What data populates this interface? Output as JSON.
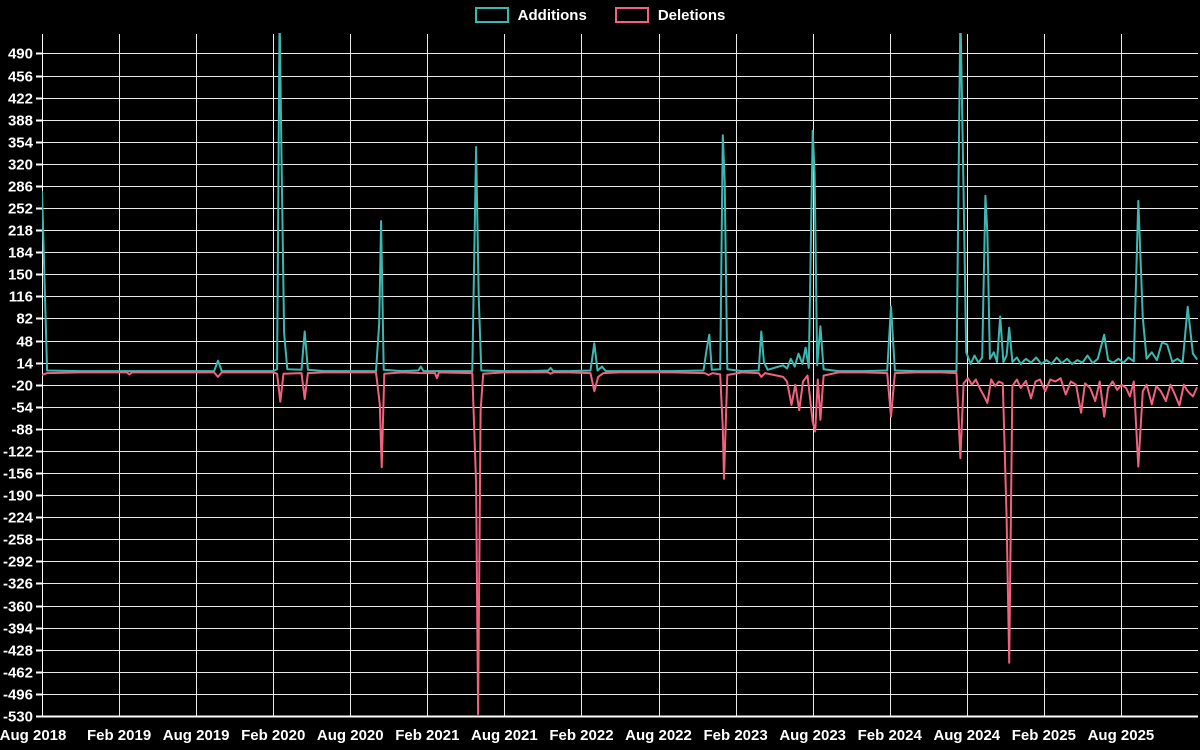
{
  "page": {
    "background": "#000000"
  },
  "legend": {
    "items": [
      {
        "label": "Additions",
        "color": "#3cb8b0"
      },
      {
        "label": "Deletions",
        "color": "#f2617f"
      }
    ]
  },
  "chart_data": {
    "type": "line",
    "title": "",
    "xlabel": "",
    "ylabel": "",
    "grid": true,
    "legend_position": "top-center",
    "background": "#000000",
    "grid_color": "#e8e8e8",
    "axis_color": "#ffffff",
    "x_unit": "months since Aug 2018",
    "x_range": [
      0,
      90
    ],
    "ylim": [
      -530,
      520
    ],
    "y_ticks": [
      490,
      456,
      422,
      388,
      354,
      320,
      286,
      252,
      218,
      184,
      150,
      116,
      82,
      48,
      14,
      -20,
      -54,
      -88,
      -122,
      -156,
      -190,
      -224,
      -258,
      -292,
      -326,
      -360,
      -394,
      -428,
      -462,
      -496,
      -530
    ],
    "x_ticks": [
      {
        "label": "Aug 2018",
        "t": 0
      },
      {
        "label": "Feb 2019",
        "t": 6
      },
      {
        "label": "Aug 2019",
        "t": 12
      },
      {
        "label": "Feb 2020",
        "t": 18
      },
      {
        "label": "Aug 2020",
        "t": 24
      },
      {
        "label": "Feb 2021",
        "t": 30
      },
      {
        "label": "Aug 2021",
        "t": 36
      },
      {
        "label": "Feb 2022",
        "t": 42
      },
      {
        "label": "Aug 2022",
        "t": 48
      },
      {
        "label": "Feb 2023",
        "t": 54
      },
      {
        "label": "Aug 2023",
        "t": 60
      },
      {
        "label": "Feb 2024",
        "t": 66
      },
      {
        "label": "Aug 2024",
        "t": 72
      },
      {
        "label": "Feb 2025",
        "t": 78
      },
      {
        "label": "Aug 2025",
        "t": 84
      }
    ],
    "series": [
      {
        "name": "Additions",
        "color": "#3cb8b0",
        "points": [
          [
            0,
            277
          ],
          [
            0.4,
            2
          ],
          [
            3,
            1
          ],
          [
            6,
            1
          ],
          [
            9,
            1
          ],
          [
            12,
            1
          ],
          [
            13.4,
            1
          ],
          [
            13.7,
            17
          ],
          [
            14,
            1
          ],
          [
            16,
            1
          ],
          [
            18,
            1
          ],
          [
            18.3,
            4
          ],
          [
            18.5,
            555
          ],
          [
            18.65,
            330
          ],
          [
            18.85,
            60
          ],
          [
            19.1,
            4
          ],
          [
            20.2,
            3
          ],
          [
            20.45,
            62
          ],
          [
            20.7,
            3
          ],
          [
            22,
            1
          ],
          [
            24,
            1
          ],
          [
            26,
            1
          ],
          [
            26.25,
            74
          ],
          [
            26.4,
            232
          ],
          [
            26.6,
            3
          ],
          [
            28,
            1
          ],
          [
            29.3,
            2
          ],
          [
            29.5,
            8
          ],
          [
            29.7,
            1
          ],
          [
            31,
            1
          ],
          [
            33.5,
            1
          ],
          [
            33.8,
            346
          ],
          [
            34,
            116
          ],
          [
            34.2,
            2
          ],
          [
            36,
            1
          ],
          [
            38,
            1
          ],
          [
            39.4,
            2
          ],
          [
            39.6,
            6
          ],
          [
            39.8,
            1
          ],
          [
            41,
            1
          ],
          [
            42.7,
            2
          ],
          [
            43,
            44
          ],
          [
            43.25,
            2
          ],
          [
            43.6,
            8
          ],
          [
            43.9,
            1
          ],
          [
            45,
            1
          ],
          [
            47,
            1
          ],
          [
            49,
            1
          ],
          [
            51.5,
            2
          ],
          [
            51.75,
            35
          ],
          [
            51.95,
            57
          ],
          [
            52.15,
            3
          ],
          [
            52.8,
            4
          ],
          [
            53,
            364
          ],
          [
            53.15,
            292
          ],
          [
            53.35,
            4
          ],
          [
            54.5,
            1
          ],
          [
            55.8,
            2
          ],
          [
            56,
            62
          ],
          [
            56.2,
            15
          ],
          [
            56.5,
            3
          ],
          [
            57.7,
            10
          ],
          [
            58,
            5
          ],
          [
            58.3,
            20
          ],
          [
            58.6,
            8
          ],
          [
            58.9,
            28
          ],
          [
            59.2,
            12
          ],
          [
            59.45,
            37
          ],
          [
            59.7,
            6
          ],
          [
            60,
            371
          ],
          [
            60.15,
            305
          ],
          [
            60.35,
            10
          ],
          [
            60.6,
            70
          ],
          [
            60.85,
            4
          ],
          [
            62,
            1
          ],
          [
            64,
            1
          ],
          [
            65.8,
            2
          ],
          [
            66.1,
            100
          ],
          [
            66.4,
            2
          ],
          [
            68,
            1
          ],
          [
            70,
            1
          ],
          [
            71.2,
            1
          ],
          [
            71.5,
            555
          ],
          [
            71.7,
            338
          ],
          [
            71.95,
            30
          ],
          [
            72.3,
            12
          ],
          [
            72.6,
            25
          ],
          [
            72.9,
            14
          ],
          [
            73.2,
            22
          ],
          [
            73.45,
            271
          ],
          [
            73.6,
            212
          ],
          [
            73.8,
            20
          ],
          [
            74.1,
            30
          ],
          [
            74.35,
            15
          ],
          [
            74.6,
            85
          ],
          [
            74.85,
            15
          ],
          [
            75.1,
            25
          ],
          [
            75.3,
            68
          ],
          [
            75.55,
            15
          ],
          [
            75.9,
            22
          ],
          [
            76.2,
            12
          ],
          [
            76.6,
            20
          ],
          [
            77,
            14
          ],
          [
            77.4,
            22
          ],
          [
            77.8,
            12
          ],
          [
            78.2,
            18
          ],
          [
            78.6,
            12
          ],
          [
            79,
            22
          ],
          [
            79.4,
            13
          ],
          [
            79.8,
            20
          ],
          [
            80.2,
            12
          ],
          [
            80.6,
            18
          ],
          [
            81,
            14
          ],
          [
            81.4,
            25
          ],
          [
            81.8,
            13
          ],
          [
            82.2,
            20
          ],
          [
            82.7,
            57
          ],
          [
            83,
            18
          ],
          [
            83.4,
            14
          ],
          [
            83.8,
            20
          ],
          [
            84.2,
            14
          ],
          [
            84.6,
            22
          ],
          [
            85,
            16
          ],
          [
            85.35,
            263
          ],
          [
            85.7,
            83
          ],
          [
            86,
            20
          ],
          [
            86.4,
            30
          ],
          [
            86.8,
            18
          ],
          [
            87.2,
            45
          ],
          [
            87.6,
            42
          ],
          [
            88,
            15
          ],
          [
            88.4,
            20
          ],
          [
            88.8,
            14
          ],
          [
            89.2,
            100
          ],
          [
            89.6,
            28
          ],
          [
            89.9,
            20
          ]
        ]
      },
      {
        "name": "Deletions",
        "color": "#f2617f",
        "points": [
          [
            0,
            -5
          ],
          [
            0.4,
            -2
          ],
          [
            3,
            -1
          ],
          [
            6.6,
            -1
          ],
          [
            6.8,
            -4
          ],
          [
            7,
            -1
          ],
          [
            10,
            -1
          ],
          [
            13.4,
            -1
          ],
          [
            13.7,
            -8
          ],
          [
            14,
            -1
          ],
          [
            16,
            -1
          ],
          [
            18,
            -1
          ],
          [
            18.3,
            -3
          ],
          [
            18.55,
            -46
          ],
          [
            18.8,
            -3
          ],
          [
            20.2,
            -2
          ],
          [
            20.45,
            -42
          ],
          [
            20.7,
            -2
          ],
          [
            22,
            -1
          ],
          [
            24,
            -1
          ],
          [
            26,
            -1
          ],
          [
            26.3,
            -50
          ],
          [
            26.45,
            -147
          ],
          [
            26.65,
            -3
          ],
          [
            28,
            -1
          ],
          [
            29.5,
            -2
          ],
          [
            30.6,
            -2
          ],
          [
            30.75,
            -10
          ],
          [
            30.9,
            -1
          ],
          [
            33.5,
            -2
          ],
          [
            33.8,
            -172
          ],
          [
            33.95,
            -527
          ],
          [
            34.15,
            -60
          ],
          [
            34.35,
            -3
          ],
          [
            36,
            -1
          ],
          [
            38,
            -1
          ],
          [
            39.4,
            -1
          ],
          [
            39.6,
            -3
          ],
          [
            39.8,
            -1
          ],
          [
            41,
            -1
          ],
          [
            42.7,
            -2
          ],
          [
            43,
            -30
          ],
          [
            43.3,
            -8
          ],
          [
            43.7,
            -2
          ],
          [
            45,
            -1
          ],
          [
            47,
            -1
          ],
          [
            49,
            -1
          ],
          [
            51.6,
            -2
          ],
          [
            51.9,
            -5
          ],
          [
            52.2,
            -2
          ],
          [
            52.8,
            -4
          ],
          [
            53,
            -87
          ],
          [
            53.1,
            -165
          ],
          [
            53.35,
            -5
          ],
          [
            54.5,
            -1
          ],
          [
            55.8,
            -2
          ],
          [
            56,
            -8
          ],
          [
            56.3,
            -2
          ],
          [
            57.7,
            -8
          ],
          [
            58,
            -15
          ],
          [
            58.35,
            -51
          ],
          [
            58.65,
            -20
          ],
          [
            58.95,
            -59
          ],
          [
            59.25,
            -15
          ],
          [
            59.6,
            -6
          ],
          [
            60,
            -77
          ],
          [
            60.2,
            -92
          ],
          [
            60.4,
            -12
          ],
          [
            60.6,
            -74
          ],
          [
            60.85,
            -6
          ],
          [
            62,
            -1
          ],
          [
            64,
            -1
          ],
          [
            65.8,
            -2
          ],
          [
            66.1,
            -69
          ],
          [
            66.4,
            -2
          ],
          [
            68,
            -1
          ],
          [
            70,
            -1
          ],
          [
            71.2,
            -2
          ],
          [
            71.5,
            -133
          ],
          [
            71.75,
            -18
          ],
          [
            72.1,
            -10
          ],
          [
            72.4,
            -20
          ],
          [
            72.7,
            -12
          ],
          [
            73,
            -25
          ],
          [
            73.3,
            -36
          ],
          [
            73.6,
            -48
          ],
          [
            73.9,
            -12
          ],
          [
            74.2,
            -22
          ],
          [
            74.5,
            -15
          ],
          [
            74.8,
            -18
          ],
          [
            75.1,
            -224
          ],
          [
            75.3,
            -448
          ],
          [
            75.55,
            -22
          ],
          [
            75.9,
            -12
          ],
          [
            76.2,
            -25
          ],
          [
            76.6,
            -14
          ],
          [
            77,
            -41
          ],
          [
            77.35,
            -15
          ],
          [
            77.7,
            -12
          ],
          [
            78.1,
            -30
          ],
          [
            78.5,
            -12
          ],
          [
            78.9,
            -15
          ],
          [
            79.3,
            -10
          ],
          [
            79.7,
            -35
          ],
          [
            80.1,
            -15
          ],
          [
            80.5,
            -20
          ],
          [
            80.9,
            -63
          ],
          [
            81.2,
            -18
          ],
          [
            81.6,
            -25
          ],
          [
            82,
            -45
          ],
          [
            82.35,
            -15
          ],
          [
            82.7,
            -69
          ],
          [
            83,
            -25
          ],
          [
            83.35,
            -15
          ],
          [
            83.7,
            -28
          ],
          [
            84.05,
            -20
          ],
          [
            84.4,
            -25
          ],
          [
            84.7,
            -38
          ],
          [
            85,
            -15
          ],
          [
            85.35,
            -146
          ],
          [
            85.7,
            -30
          ],
          [
            86,
            -20
          ],
          [
            86.4,
            -50
          ],
          [
            86.75,
            -22
          ],
          [
            87.1,
            -30
          ],
          [
            87.5,
            -45
          ],
          [
            87.85,
            -20
          ],
          [
            88.2,
            -35
          ],
          [
            88.55,
            -52
          ],
          [
            88.9,
            -20
          ],
          [
            89.2,
            -30
          ],
          [
            89.6,
            -38
          ],
          [
            89.9,
            -25
          ]
        ]
      }
    ]
  }
}
